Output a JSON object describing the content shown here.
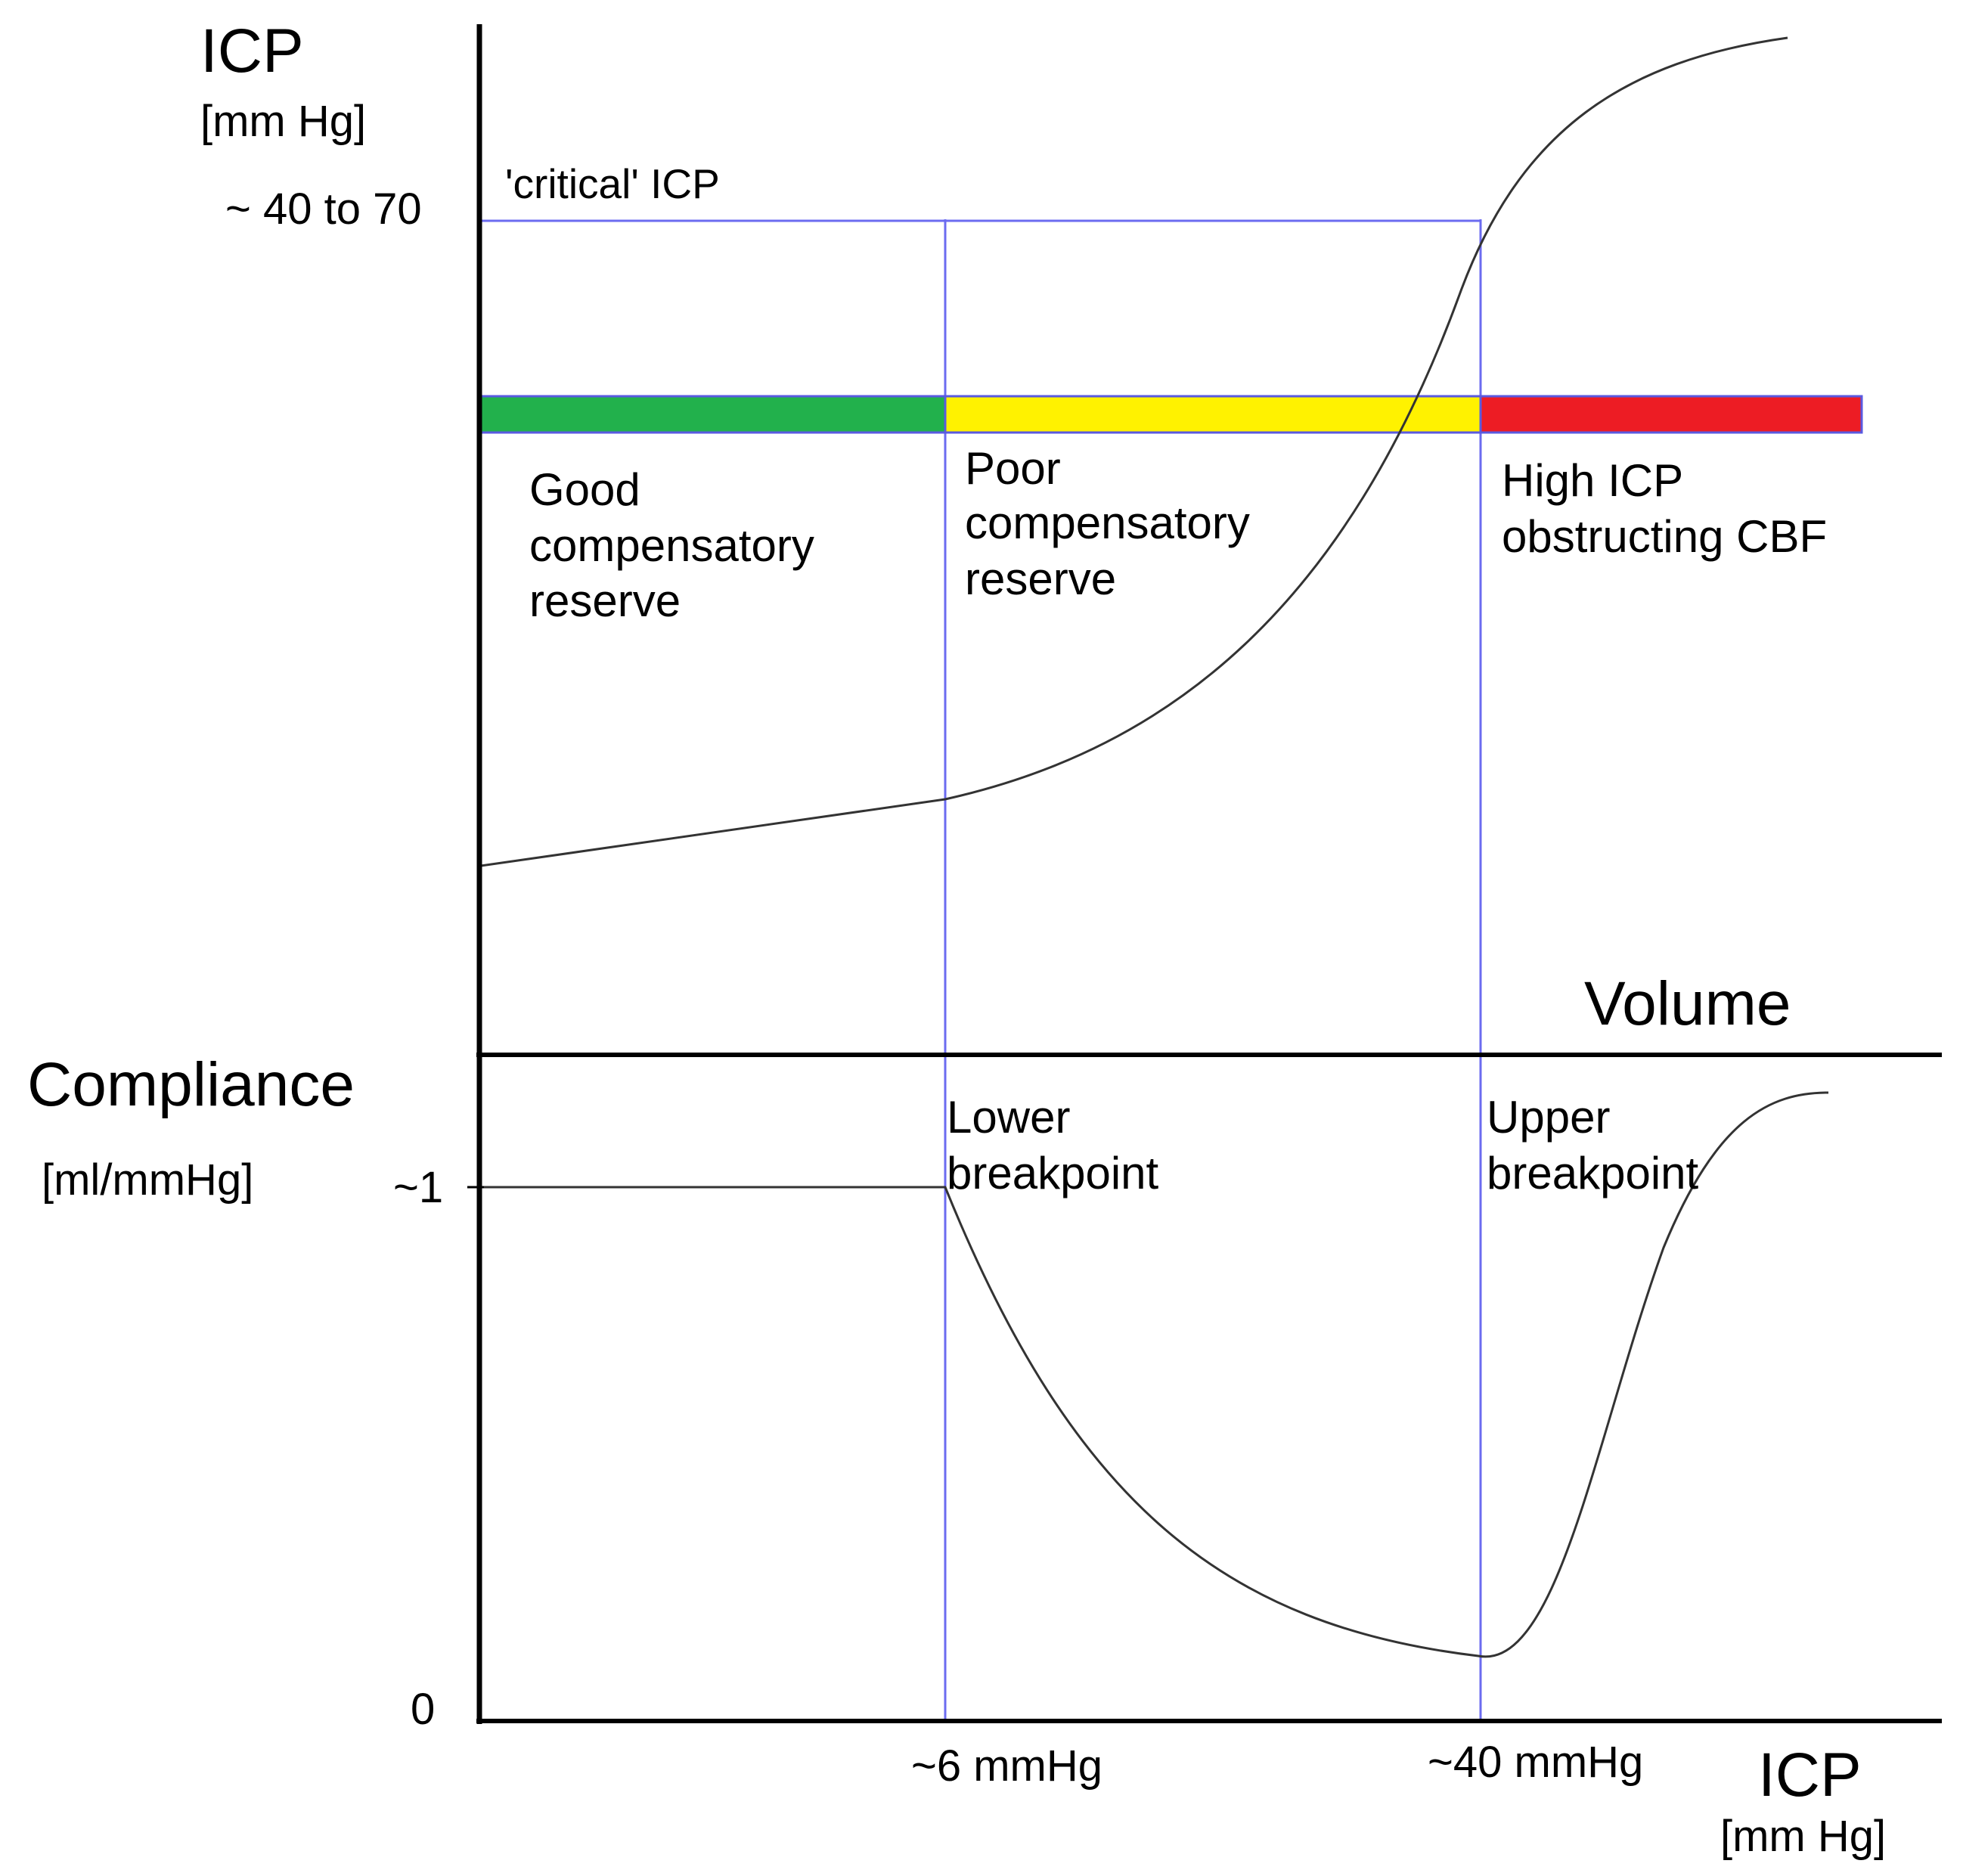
{
  "colors": {
    "background": "#ffffff",
    "axis": "#000000",
    "curve": "#333333",
    "guide": "#6b6bf0",
    "zone_good": "#22b14c",
    "zone_poor": "#fff200",
    "zone_high": "#ed1c24"
  },
  "top_panel": {
    "y_title": "ICP",
    "y_unit": "[mm Hg]",
    "critical_label": "'critical' ICP",
    "critical_value": "~ 40 to 70",
    "x_title": "Volume",
    "zones": [
      {
        "lines": [
          "Good",
          "compensatory",
          "reserve"
        ]
      },
      {
        "lines": [
          "Poor",
          "compensatory",
          "reserve"
        ]
      },
      {
        "lines": [
          "High ICP",
          "obstructing CBF"
        ]
      }
    ]
  },
  "bottom_panel": {
    "y_title": "Compliance",
    "y_unit": "[ml/mmHg]",
    "y_tick_high": "~1",
    "y_tick_zero": "0",
    "lower_breakpoint": [
      "Lower",
      "breakpoint"
    ],
    "upper_breakpoint": [
      "Upper",
      "breakpoint"
    ],
    "x_tick_lower": "~6 mmHg",
    "x_tick_upper": "~40 mmHg",
    "x_title": "ICP",
    "x_unit": "[mm Hg]"
  }
}
